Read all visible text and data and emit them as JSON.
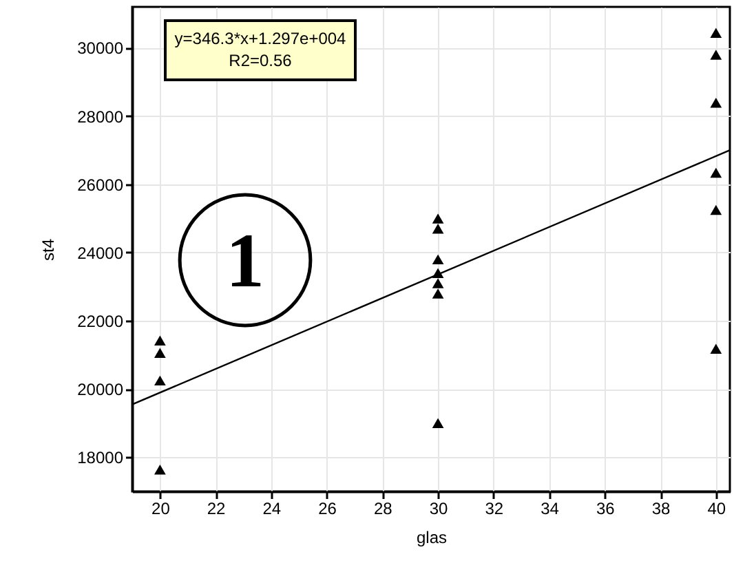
{
  "chart_data": {
    "type": "scatter",
    "xlabel": "glas",
    "ylabel": "st4",
    "xlim": [
      19,
      40.5
    ],
    "ylim": [
      17000,
      31200
    ],
    "xticks": [
      20,
      22,
      24,
      26,
      28,
      30,
      32,
      34,
      36,
      38,
      40
    ],
    "yticks": [
      18000,
      20000,
      22000,
      24000,
      26000,
      28000,
      30000
    ],
    "grid": true,
    "marker": "triangle",
    "annotations": [
      "y=346.3*x+1.297e+004",
      "R2=0.56",
      "1"
    ],
    "series": [
      {
        "color": "#000000",
        "x": [
          20,
          20,
          20,
          20,
          30,
          30,
          30,
          30,
          30,
          30,
          30,
          40,
          40,
          40,
          40,
          40,
          40
        ],
        "values": [
          21420,
          21060,
          20250,
          17640,
          25000,
          24700,
          23800,
          23400,
          23100,
          22800,
          19000,
          30440,
          29800,
          28390,
          26340,
          25250,
          21180
        ]
      },
      {
        "type": "line",
        "color": "#000000",
        "x": [
          19,
          40.5
        ],
        "values": [
          19550,
          27000
        ],
        "marker": "none",
        "line_style": "solid"
      }
    ]
  }
}
